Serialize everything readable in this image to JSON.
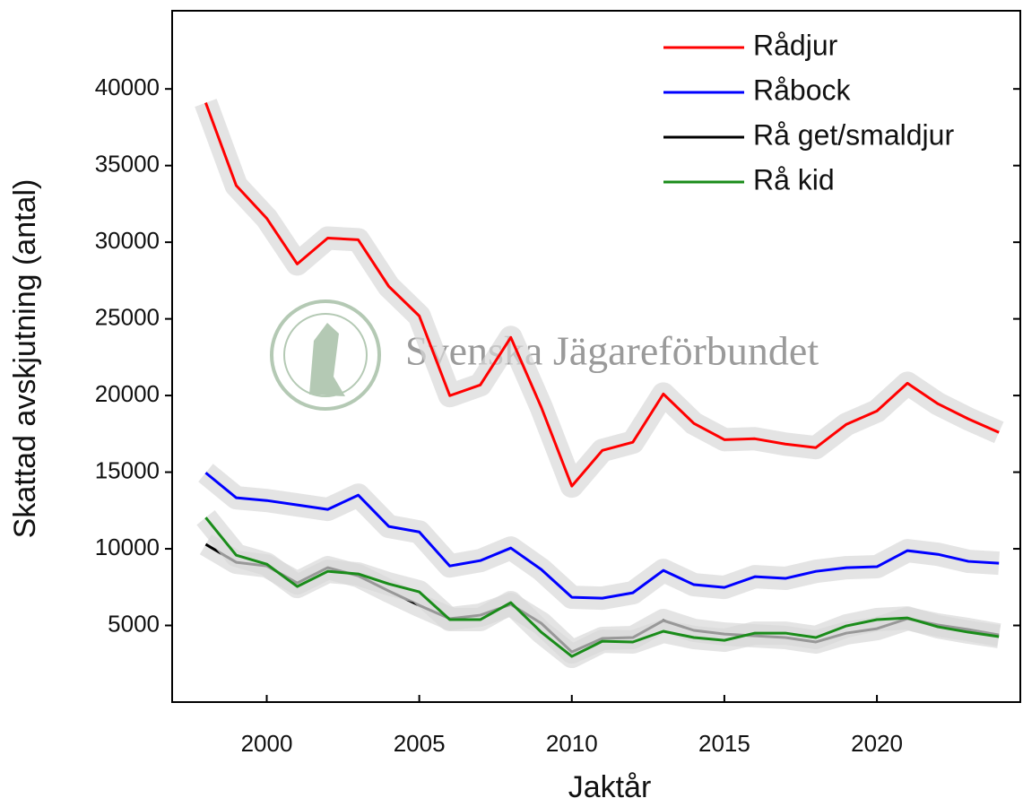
{
  "chart_data": {
    "type": "line",
    "x_label": "Jaktår",
    "y_label": "Skattad avskjutning (antal)",
    "watermark": "Svenska Jägareförbundet",
    "x": [
      1998,
      1999,
      2000,
      2001,
      2002,
      2003,
      2004,
      2005,
      2006,
      2007,
      2008,
      2009,
      2010,
      2011,
      2012,
      2013,
      2014,
      2015,
      2016,
      2017,
      2018,
      2019,
      2020,
      2021,
      2022,
      2023,
      2024
    ],
    "series": [
      {
        "name": "Rådjur",
        "color": "#ff0000",
        "values": [
          39100,
          33700,
          31560,
          28580,
          30270,
          30160,
          27120,
          25190,
          19990,
          20690,
          23790,
          19230,
          14090,
          16420,
          16950,
          20100,
          18180,
          17120,
          17180,
          16830,
          16600,
          18120,
          18990,
          20800,
          19460,
          18470,
          17590
        ]
      },
      {
        "name": "Råbock",
        "color": "#0000ff",
        "values": [
          14960,
          13330,
          13150,
          12860,
          12570,
          13500,
          11460,
          11100,
          8880,
          9230,
          10050,
          8650,
          6840,
          6780,
          7130,
          8590,
          7660,
          7480,
          8180,
          8070,
          8530,
          8770,
          8830,
          9880,
          9640,
          9180,
          9060
        ]
      },
      {
        "name": "Rå get/smaldjur",
        "color": "#000000",
        "values": [
          10290,
          9120,
          8880,
          7770,
          8770,
          8240,
          7250,
          6310,
          5440,
          5670,
          6370,
          5140,
          3270,
          4150,
          4210,
          5320,
          4680,
          4440,
          4320,
          4210,
          3920,
          4500,
          4790,
          5440,
          5030,
          4730,
          4380
        ]
      },
      {
        "name": "Rå kid",
        "color": "#1a8c1a",
        "values": [
          12040,
          9580,
          9000,
          7540,
          8530,
          8360,
          7710,
          7190,
          5380,
          5380,
          6490,
          4560,
          2980,
          3970,
          3920,
          4620,
          4210,
          4030,
          4500,
          4500,
          4210,
          4970,
          5380,
          5490,
          4910,
          4560,
          4270
        ]
      }
    ],
    "xlim": [
      1996.9,
      2024.7
    ],
    "xticks": [
      2000,
      2005,
      2010,
      2015,
      2020
    ],
    "ylim": [
      0,
      45100
    ],
    "yticks": [
      5000,
      10000,
      15000,
      20000,
      25000,
      30000,
      35000,
      40000
    ],
    "legend": "top-right",
    "grid": false
  }
}
